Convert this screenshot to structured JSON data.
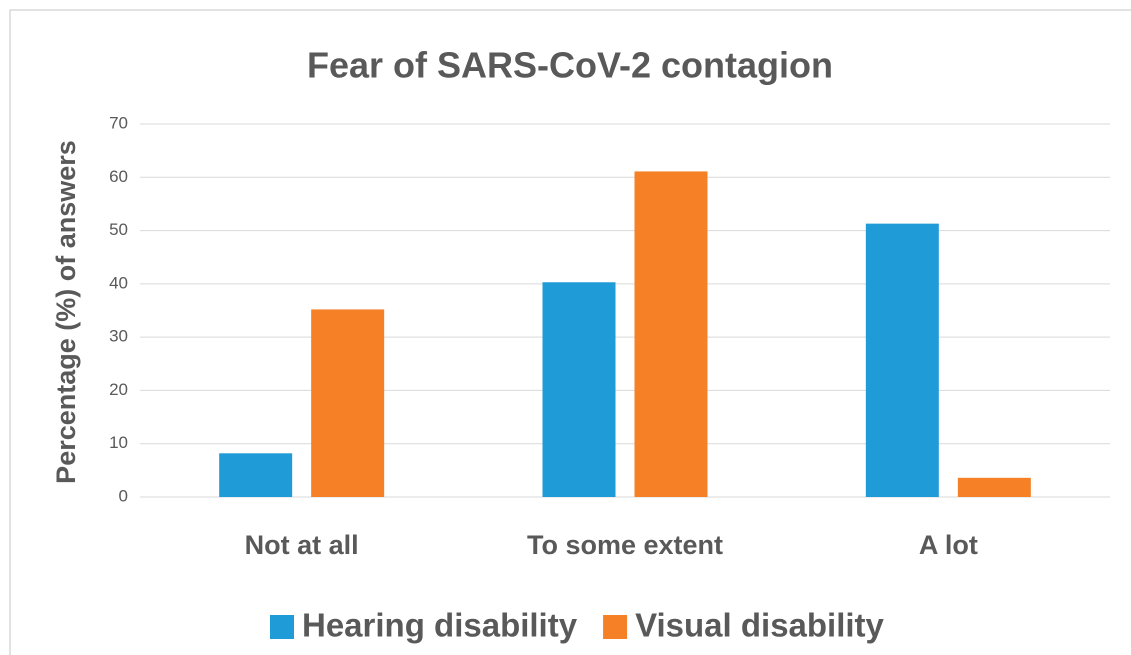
{
  "chart_data": {
    "type": "bar",
    "title": "Fear of SARS-CoV-2 contagion",
    "y_label": "Percentage (%) of answers",
    "categories": [
      "Not at all",
      "To some extent",
      "A lot"
    ],
    "series": [
      {
        "name": "Hearing disability",
        "color": "#1f9bd7",
        "values": [
          8.2,
          40.3,
          51.3
        ]
      },
      {
        "name": "Visual disability",
        "color": "#f58025",
        "values": [
          35.2,
          61.1,
          3.6
        ]
      }
    ],
    "ylim": [
      0,
      70
    ],
    "yticks": [
      0,
      10,
      20,
      30,
      40,
      50,
      60,
      70
    ],
    "grid": true,
    "legend": "bottom"
  }
}
